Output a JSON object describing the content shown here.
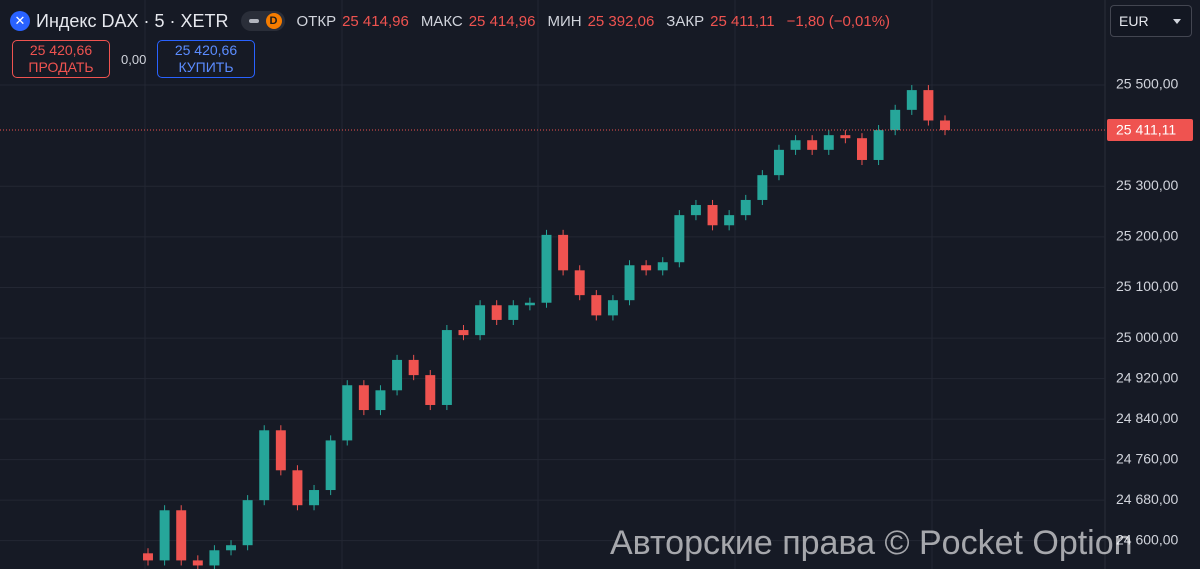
{
  "header": {
    "title": "Индекс DAX · 5 · XETR",
    "badge": "D",
    "open_label": "ОТКР",
    "open_value": "25 414,96",
    "high_label": "МАКС",
    "high_value": "25 414,96",
    "low_label": "МИН",
    "low_value": "25 392,06",
    "close_label": "ЗАКР",
    "close_value": "25 411,11",
    "change": "−1,80 (−0,01%)"
  },
  "trade_panel": {
    "sell_price": "25 420,66",
    "sell_label": "ПРОДАТЬ",
    "spread": "0,00",
    "buy_price": "25 420,66",
    "buy_label": "КУПИТЬ"
  },
  "currency": "EUR",
  "watermark": "Авторские права © Pocket Option",
  "chart_data": {
    "type": "candlestick",
    "up_color": "#26a69a",
    "down_color": "#ef5350",
    "open": [
      24575,
      24561,
      24660,
      24561,
      24551,
      24581,
      24591,
      24680,
      24818,
      24739,
      24670,
      24700,
      24798,
      24907,
      24858,
      24897,
      24957,
      24927,
      24868,
      25016,
      25006,
      25065,
      25036,
      25065,
      25070,
      25204,
      25134,
      25085,
      25045,
      25075,
      25144,
      25134,
      25150,
      25243,
      25263,
      25223,
      25243,
      25273,
      25322,
      25372,
      25391,
      25372,
      25401,
      25395,
      25352,
      25411,
      25451,
      25490,
      25430
    ],
    "high": [
      24585,
      24670,
      24670,
      24571,
      24591,
      24601,
      24690,
      24828,
      24828,
      24749,
      24710,
      24808,
      24917,
      24917,
      24907,
      24967,
      24967,
      24937,
      25026,
      25026,
      25075,
      25075,
      25075,
      25080,
      25214,
      25214,
      25144,
      25095,
      25085,
      25154,
      25154,
      25160,
      25253,
      25273,
      25273,
      25253,
      25283,
      25332,
      25382,
      25401,
      25401,
      25411,
      25411,
      25405,
      25421,
      25461,
      25500,
      25500,
      25440
    ],
    "low": [
      24551,
      24551,
      24551,
      24541,
      24541,
      24571,
      24581,
      24670,
      24729,
      24660,
      24660,
      24690,
      24788,
      24848,
      24848,
      24887,
      24917,
      24858,
      24858,
      24996,
      24996,
      25026,
      25026,
      25055,
      25060,
      25124,
      25075,
      25035,
      25035,
      25065,
      25124,
      25124,
      25140,
      25233,
      25213,
      25213,
      25233,
      25263,
      25312,
      25362,
      25362,
      25362,
      25385,
      25342,
      25342,
      25401,
      25441,
      25420,
      25401
    ],
    "close": [
      24561,
      24660,
      24561,
      24551,
      24581,
      24591,
      24680,
      24818,
      24739,
      24670,
      24700,
      24798,
      24907,
      24858,
      24897,
      24957,
      24927,
      24868,
      25016,
      25006,
      25065,
      25036,
      25065,
      25070,
      25204,
      25134,
      25085,
      25045,
      25075,
      25144,
      25134,
      25150,
      25243,
      25263,
      25223,
      25243,
      25273,
      25322,
      25372,
      25391,
      25372,
      25401,
      25395,
      25352,
      25411,
      25451,
      25490,
      25430,
      25411
    ],
    "ylim": [
      24544,
      25668
    ],
    "yticks": [
      {
        "value": 25500,
        "label": "25 500,00"
      },
      {
        "value": 25300,
        "label": "25 300,00"
      },
      {
        "value": 25200,
        "label": "25 200,00"
      },
      {
        "value": 25100,
        "label": "25 100,00"
      },
      {
        "value": 25000,
        "label": "25 000,00"
      },
      {
        "value": 24920,
        "label": "24 920,00"
      },
      {
        "value": 24840,
        "label": "24 840,00"
      },
      {
        "value": 24760,
        "label": "24 760,00"
      },
      {
        "value": 24680,
        "label": "24 680,00"
      },
      {
        "value": 24600,
        "label": "24 600,00"
      }
    ],
    "last_price": {
      "value": 25411.11,
      "label": "25 411,11"
    },
    "grid": true
  }
}
